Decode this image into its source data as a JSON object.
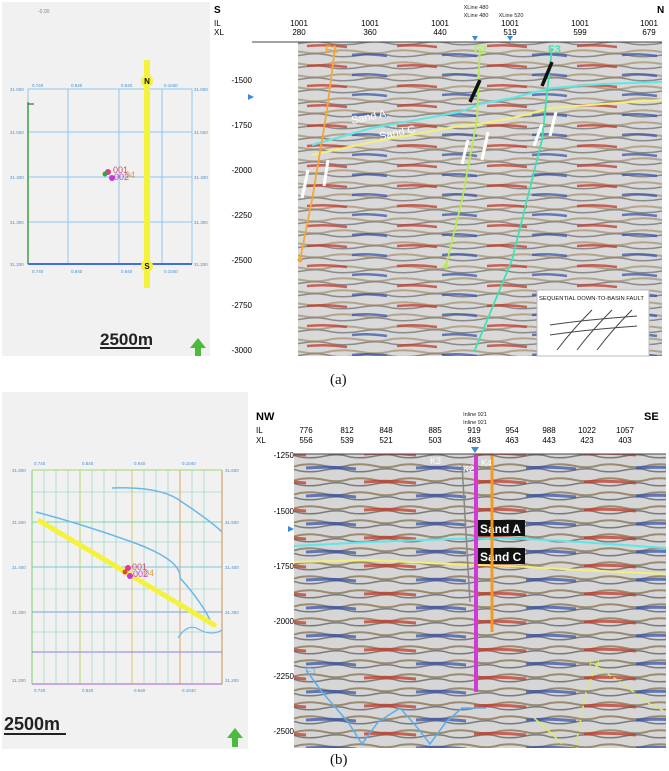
{
  "panel_a": {
    "map": {
      "top_label": "-0.00",
      "tick_labels": {
        "x0": "0.740",
        "x1": "0.840",
        "x2": "0.940",
        "x3": "0.1040",
        "y0": "31.600",
        "y1": "31.500",
        "y2": "31.400",
        "y3": "31.300",
        "y4": "31.200"
      },
      "well_labels": [
        "001",
        "002",
        "04"
      ],
      "line_end_top": "N",
      "line_end_bottom": "S",
      "scale_bar_label": "2500m",
      "north_arrow_icon": "green-up-arrow"
    },
    "section": {
      "left_end": "S",
      "right_end": "N",
      "il_label": "IL",
      "xl_label": "XL",
      "il_ticks": [
        "1001",
        "1001",
        "1001",
        "1001",
        "1001",
        "1001"
      ],
      "xl_ticks": [
        "280",
        "360",
        "440",
        "519",
        "599",
        "679"
      ],
      "xline_markers": [
        "XLine 480",
        "XLine 480",
        "XLine 520"
      ],
      "y_ticks": [
        "-1500",
        "-1750",
        "-2000",
        "-2250",
        "-2500",
        "-2750",
        "-3000"
      ],
      "horizon_labels": [
        "Sand A",
        "Sand C"
      ],
      "fault_labels": [
        "F1",
        "F2",
        "F3"
      ],
      "inset_title": "SEQUENTIAL DOWN-TO-BASIN FAULT"
    },
    "caption": "(a)"
  },
  "panel_b": {
    "map": {
      "tick_labels": {
        "x0": "0.740",
        "x1": "0.840",
        "x2": "0.940",
        "x3": "0.1040",
        "y0": "31.600",
        "y1": "31.500",
        "y2": "31.400",
        "y3": "31.300",
        "y4": "31.200"
      },
      "well_labels": [
        "001",
        "002",
        "04"
      ],
      "scale_bar_label": "2500m",
      "north_arrow_icon": "green-up-arrow"
    },
    "section": {
      "left_end": "NW",
      "right_end": "SE",
      "il_label": "IL",
      "xl_label": "XL",
      "il_ticks": [
        "776",
        "812",
        "848",
        "885",
        "919",
        "954",
        "988",
        "1022",
        "1057"
      ],
      "xl_ticks": [
        "556",
        "539",
        "521",
        "503",
        "483",
        "463",
        "443",
        "423",
        "403"
      ],
      "inline_markers": [
        "Inline 921",
        "Inline 921"
      ],
      "y_ticks": [
        "-1250",
        "-1500",
        "-1750",
        "-2000",
        "-2250",
        "-2500"
      ],
      "horizon_labels": [
        "Sand A",
        "Sand C"
      ],
      "well_labels": [
        "K3",
        "K2",
        "K4"
      ],
      "fault_labels": [
        "F1",
        "F3"
      ]
    },
    "caption": "(b)"
  },
  "colors": {
    "map_grid": "#8ec8ee",
    "horizon_a": "#5fe6e6",
    "horizon_c": "#f3ef7a",
    "fault_f1": "#f3a73a",
    "fault_f2": "#b6ec56",
    "fault_f3": "#3ee3b0",
    "well_magenta": "#d23ad8",
    "well_orange": "#f39a24",
    "north_arrow": "#4cba3c"
  }
}
